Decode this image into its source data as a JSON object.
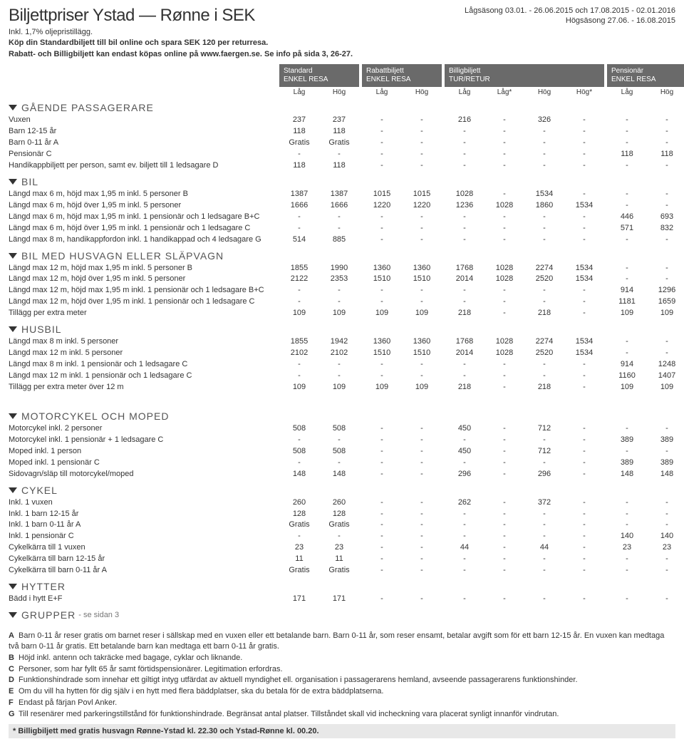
{
  "title": "Biljettpriser Ystad — Rønne i SEK",
  "subtitle1": "Inkl. 1,7% oljepristillägg.",
  "subtitle2": "Köp din Standardbiljett till bil online och spara SEK 120 per returresa.",
  "subtitle3": "Rabatt- och Billigbiljett kan endast köpas online på www.faergen.se. Se info på sida 3, 26-27.",
  "season1": "Lågsäsong 03.01. - 26.06.2015 och 17.08.2015 - 02.01.2016",
  "season2": "Högsäsong 27.06. - 16.08.2015",
  "columns": [
    {
      "top": "Standard",
      "bottom": "ENKEL RESA",
      "sub": [
        "Låg",
        "Hög"
      ]
    },
    {
      "top": "Rabattbiljett",
      "bottom": "ENKEL RESA",
      "sub": [
        "Låg",
        "Hög"
      ]
    },
    {
      "top": "Billigbiljett",
      "bottom": "TUR/RETUR",
      "sub": [
        "Låg",
        "Låg*",
        "Hög",
        "Hög*"
      ]
    },
    {
      "top": "Pensionär",
      "bottom": "ENKEL RESA",
      "sub": [
        "Låg",
        "Hög"
      ]
    }
  ],
  "sections": [
    {
      "name": "GÅENDE PASSAGERARE",
      "rows": [
        {
          "l": "Vuxen",
          "v": [
            "237",
            "237",
            "-",
            "-",
            "216",
            "-",
            "326",
            "-",
            "-",
            "-"
          ]
        },
        {
          "l": "Barn 12-15 år",
          "v": [
            "118",
            "118",
            "-",
            "-",
            "-",
            "-",
            "-",
            "-",
            "-",
            "-"
          ]
        },
        {
          "l": "Barn 0-11 år A",
          "v": [
            "Gratis",
            "Gratis",
            "-",
            "-",
            "-",
            "-",
            "-",
            "-",
            "-",
            "-"
          ]
        },
        {
          "l": "Pensionär C",
          "v": [
            "-",
            "-",
            "-",
            "-",
            "-",
            "-",
            "-",
            "-",
            "118",
            "118"
          ]
        },
        {
          "l": "Handikappbiljett per person, samt ev. biljett till 1 ledsagare D",
          "v": [
            "118",
            "118",
            "-",
            "-",
            "-",
            "-",
            "-",
            "-",
            "-",
            "-"
          ]
        }
      ]
    },
    {
      "name": "BIL",
      "rows": [
        {
          "l": "Längd max 6 m, höjd max 1,95 m inkl. 5 personer B",
          "v": [
            "1387",
            "1387",
            "1015",
            "1015",
            "1028",
            "-",
            "1534",
            "-",
            "-",
            "-"
          ]
        },
        {
          "l": "Längd max 6 m, höjd över 1,95 m inkl. 5 personer",
          "v": [
            "1666",
            "1666",
            "1220",
            "1220",
            "1236",
            "1028",
            "1860",
            "1534",
            "-",
            "-"
          ]
        },
        {
          "l": "Längd max 6 m, höjd max 1,95 m inkl. 1 pensionär och 1 ledsagare B+C",
          "v": [
            "-",
            "-",
            "-",
            "-",
            "-",
            "-",
            "-",
            "-",
            "446",
            "693"
          ]
        },
        {
          "l": "Längd max 6 m, höjd över 1,95 m inkl. 1 pensionär och 1 ledsagare C",
          "v": [
            "-",
            "-",
            "-",
            "-",
            "-",
            "-",
            "-",
            "-",
            "571",
            "832"
          ]
        },
        {
          "l": "Längd max 8 m, handikappfordon inkl. 1 handikappad och 4 ledsagare G",
          "v": [
            "514",
            "885",
            "-",
            "-",
            "-",
            "-",
            "-",
            "-",
            "-",
            "-"
          ]
        }
      ]
    },
    {
      "name": "BIL MED HUSVAGN ELLER SLÄPVAGN",
      "rows": [
        {
          "l": "Längd max 12 m, höjd max 1,95 m inkl. 5 personer B",
          "v": [
            "1855",
            "1990",
            "1360",
            "1360",
            "1768",
            "1028",
            "2274",
            "1534",
            "-",
            "-"
          ]
        },
        {
          "l": "Längd max 12 m, höjd över 1,95 m inkl. 5 personer",
          "v": [
            "2122",
            "2353",
            "1510",
            "1510",
            "2014",
            "1028",
            "2520",
            "1534",
            "-",
            "-"
          ]
        },
        {
          "l": "Längd max 12 m, höjd max 1,95 m inkl. 1 pensionär och 1 ledsagare B+C",
          "v": [
            "-",
            "-",
            "-",
            "-",
            "-",
            "-",
            "-",
            "-",
            "914",
            "1296"
          ]
        },
        {
          "l": "Längd max 12 m, höjd över 1,95 m inkl. 1 pensionär och 1 ledsagare C",
          "v": [
            "-",
            "-",
            "-",
            "-",
            "-",
            "-",
            "-",
            "-",
            "1181",
            "1659"
          ]
        },
        {
          "l": "Tillägg per extra meter",
          "v": [
            "109",
            "109",
            "109",
            "109",
            "218",
            "-",
            "218",
            "-",
            "109",
            "109"
          ]
        }
      ]
    },
    {
      "name": "HUSBIL",
      "rows": [
        {
          "l": "Längd max 8 m inkl. 5 personer",
          "v": [
            "1855",
            "1942",
            "1360",
            "1360",
            "1768",
            "1028",
            "2274",
            "1534",
            "-",
            "-"
          ]
        },
        {
          "l": "Längd max 12 m inkl. 5 personer",
          "v": [
            "2102",
            "2102",
            "1510",
            "1510",
            "2014",
            "1028",
            "2520",
            "1534",
            "-",
            "-"
          ]
        },
        {
          "l": "Längd max 8 m inkl. 1 pensionär och 1 ledsagare C",
          "v": [
            "-",
            "-",
            "-",
            "-",
            "-",
            "-",
            "-",
            "-",
            "914",
            "1248"
          ]
        },
        {
          "l": "Längd max 12 m inkl. 1 pensionär och 1 ledsagare C",
          "v": [
            "-",
            "-",
            "-",
            "-",
            "-",
            "-",
            "-",
            "-",
            "1160",
            "1407"
          ]
        },
        {
          "l": "Tillägg per extra meter över 12 m",
          "v": [
            "109",
            "109",
            "109",
            "109",
            "218",
            "-",
            "218",
            "-",
            "109",
            "109"
          ]
        }
      ]
    },
    {
      "name": "MOTORCYKEL OCH MOPED",
      "gap": true,
      "rows": [
        {
          "l": "Motorcykel inkl. 2 personer",
          "v": [
            "508",
            "508",
            "-",
            "-",
            "450",
            "-",
            "712",
            "-",
            "-",
            "-"
          ]
        },
        {
          "l": "Motorcykel inkl. 1 pensionär + 1 ledsagare C",
          "v": [
            "-",
            "-",
            "-",
            "-",
            "-",
            "-",
            "-",
            "-",
            "389",
            "389"
          ]
        },
        {
          "l": "Moped inkl. 1 person",
          "v": [
            "508",
            "508",
            "-",
            "-",
            "450",
            "-",
            "712",
            "-",
            "-",
            "-"
          ]
        },
        {
          "l": "Moped inkl. 1 pensionär C",
          "v": [
            "-",
            "-",
            "-",
            "-",
            "-",
            "-",
            "-",
            "-",
            "389",
            "389"
          ]
        },
        {
          "l": "Sidovagn/släp till motorcykel/moped",
          "v": [
            "148",
            "148",
            "-",
            "-",
            "296",
            "-",
            "296",
            "-",
            "148",
            "148"
          ]
        }
      ]
    },
    {
      "name": "CYKEL",
      "rows": [
        {
          "l": "Inkl. 1 vuxen",
          "v": [
            "260",
            "260",
            "-",
            "-",
            "262",
            "-",
            "372",
            "-",
            "-",
            "-"
          ]
        },
        {
          "l": "Inkl. 1 barn 12-15 år",
          "v": [
            "128",
            "128",
            "-",
            "-",
            "-",
            "-",
            "-",
            "-",
            "-",
            "-"
          ]
        },
        {
          "l": "Inkl. 1 barn 0-11 år A",
          "v": [
            "Gratis",
            "Gratis",
            "-",
            "-",
            "-",
            "-",
            "-",
            "-",
            "-",
            "-"
          ]
        },
        {
          "l": "Inkl. 1 pensionär C",
          "v": [
            "-",
            "-",
            "-",
            "-",
            "-",
            "-",
            "-",
            "-",
            "140",
            "140"
          ]
        },
        {
          "l": "Cykelkärra till 1 vuxen",
          "v": [
            "23",
            "23",
            "-",
            "-",
            "44",
            "-",
            "44",
            "-",
            "23",
            "23"
          ]
        },
        {
          "l": "Cykelkärra till barn 12-15 år",
          "v": [
            "11",
            "11",
            "-",
            "-",
            "-",
            "-",
            "-",
            "-",
            "-",
            "-"
          ]
        },
        {
          "l": "Cykelkärra till barn 0-11 år A",
          "v": [
            "Gratis",
            "Gratis",
            "-",
            "-",
            "-",
            "-",
            "-",
            "-",
            "-",
            "-"
          ]
        }
      ]
    },
    {
      "name": "HYTTER",
      "rows": [
        {
          "l": "Bädd i hytt E+F",
          "v": [
            "171",
            "171",
            "-",
            "-",
            "-",
            "-",
            "-",
            "-",
            "-",
            "-"
          ]
        }
      ]
    },
    {
      "name": "GRUPPER",
      "note": "- se sidan 3",
      "rows": []
    }
  ],
  "footnotes": [
    {
      "k": "A",
      "t": "Barn 0-11 år reser gratis om barnet reser i sällskap med en vuxen eller ett betalande barn. Barn 0-11 år, som reser ensamt, betalar avgift som för ett barn 12-15 år. En vuxen kan medtaga två barn 0-11 år gratis. Ett betalande barn kan medtaga ett barn 0-11 år gratis."
    },
    {
      "k": "B",
      "t": "Höjd inkl. antenn och takräcke med bagage, cyklar och liknande."
    },
    {
      "k": "C",
      "t": "Personer, som har fyllt 65 år samt förtidspensionärer. Legitimation erfordras."
    },
    {
      "k": "D",
      "t": "Funktionshindrade som innehar ett giltigt intyg utfärdat av aktuell myndighet ell. organisation i passagerarens hemland, avseende passagerarens funktionshinder."
    },
    {
      "k": "E",
      "t": "Om du vill ha hytten för dig själv i en hytt med flera bäddplatser, ska du betala för de extra bäddplatserna."
    },
    {
      "k": "F",
      "t": "Endast på färjan Povl Anker."
    },
    {
      "k": "G",
      "t": "Till resenärer med parkeringstillstånd för funktionshindrade. Begränsat antal platser. Tillståndet skall vid incheckning vara placerat synligt innanför vindrutan."
    }
  ],
  "final_note": "* Billigbiljett med gratis husvagn Rønne-Ystad kl. 22.30 och Ystad-Rønne kl. 00.20."
}
